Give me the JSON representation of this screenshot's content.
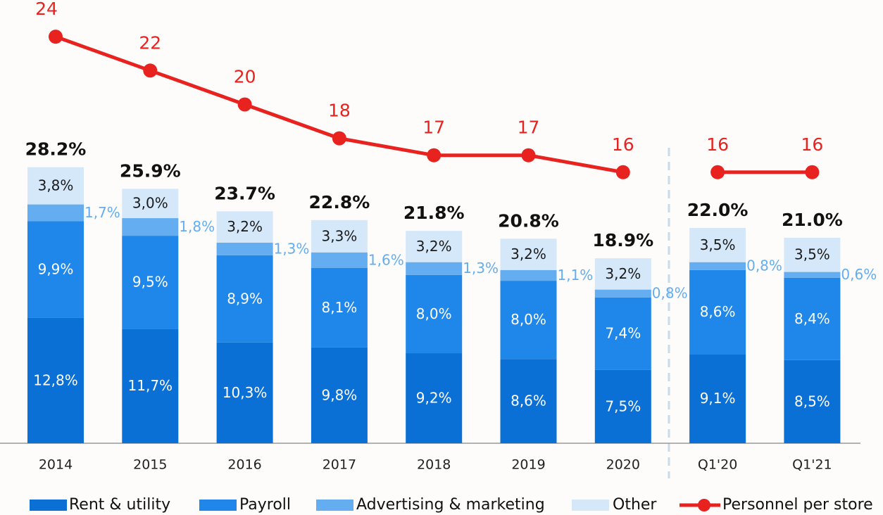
{
  "chart_data": {
    "type": "bar",
    "stacked": true,
    "categories": [
      "2014",
      "2015",
      "2016",
      "2017",
      "2018",
      "2019",
      "2020",
      "Q1'20",
      "Q1'21"
    ],
    "series": [
      {
        "name": "Rent & utility",
        "color": "#0b70d6",
        "values": [
          12.8,
          11.7,
          10.3,
          9.8,
          9.2,
          8.6,
          7.5,
          9.1,
          8.5
        ],
        "value_labels": [
          "12,8%",
          "11,7%",
          "10,3%",
          "9,8%",
          "9,2%",
          "8,6%",
          "7,5%",
          "9,1%",
          "8,5%"
        ]
      },
      {
        "name": "Payroll",
        "color": "#1f87ea",
        "values": [
          9.9,
          9.5,
          8.9,
          8.1,
          8.0,
          8.0,
          7.4,
          8.6,
          8.4
        ],
        "value_labels": [
          "9,9%",
          "9,5%",
          "8,9%",
          "8,1%",
          "8,0%",
          "8,0%",
          "7,4%",
          "8,6%",
          "8,4%"
        ]
      },
      {
        "name": "Advertising & marketing",
        "color": "#63adf0",
        "values": [
          1.7,
          1.8,
          1.3,
          1.6,
          1.3,
          1.1,
          0.8,
          0.8,
          0.6
        ],
        "value_labels": [
          "1,7%",
          "1,8%",
          "1,3%",
          "1,6%",
          "1,3%",
          "1,1%",
          "0,8%",
          "0,8%",
          "0,6%"
        ]
      },
      {
        "name": "Other",
        "color": "#d5e8fa",
        "values": [
          3.8,
          3.0,
          3.2,
          3.3,
          3.2,
          3.2,
          3.2,
          3.5,
          3.5
        ],
        "value_labels": [
          "3,8%",
          "3,0%",
          "3,2%",
          "3,3%",
          "3,2%",
          "3,2%",
          "3,2%",
          "3,5%",
          "3,5%"
        ]
      },
      {
        "name": "Personnel per store",
        "type": "line",
        "axis": "y2",
        "color": "#e8231f",
        "values": [
          24,
          22,
          20,
          18,
          17,
          17,
          16,
          16,
          16
        ]
      }
    ],
    "totals": [
      28.2,
      25.9,
      23.7,
      22.8,
      21.8,
      20.8,
      18.9,
      22.0,
      21.0
    ],
    "total_labels": [
      "28.2%",
      "25.9%",
      "23.7%",
      "22.8%",
      "21.8%",
      "20.8%",
      "18.9%",
      "22.0%",
      "21.0%"
    ],
    "ylim": [
      0,
      45
    ],
    "y2lim": [
      0,
      26
    ],
    "legend": "bottom"
  }
}
